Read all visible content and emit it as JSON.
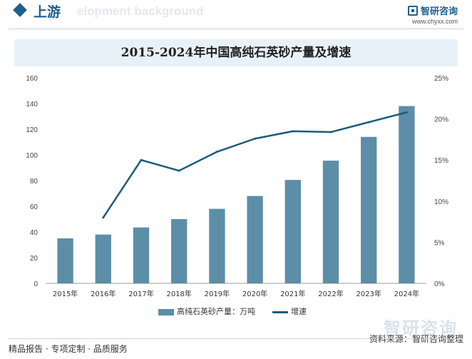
{
  "header": {
    "section_title": "上游",
    "ghost_text": "elopment background",
    "brand_name": "智研咨询",
    "brand_url": "www.chyxx.com"
  },
  "footer": {
    "left_text": "精品报告 · 专项定制 · 品质服务",
    "source_text": "资料来源：智研咨询整理",
    "brand_mark": "智研咨询"
  },
  "colors": {
    "bar": "#5c8ea8",
    "line": "#1b5c7a",
    "accent": "#1f5f8b",
    "title_band": "#e9f1f8"
  },
  "chart_data": {
    "type": "bar",
    "title": "2015-2024年中国高纯石英砂产量及增速",
    "categories": [
      "2015年",
      "2016年",
      "2017年",
      "2018年",
      "2019年",
      "2020年",
      "2021年",
      "2022年",
      "2023年",
      "2024年"
    ],
    "series": [
      {
        "name": "高纯石英砂产量：万吨",
        "type": "bar",
        "axis": "left",
        "values": [
          35,
          38,
          43.5,
          50,
          58,
          68,
          80.5,
          95.5,
          114,
          138
        ]
      },
      {
        "name": "增速",
        "type": "line",
        "axis": "right",
        "values": [
          null,
          8.0,
          15.0,
          13.7,
          16.0,
          17.6,
          18.5,
          18.4,
          19.6,
          20.8
        ]
      }
    ],
    "y_left": {
      "min": 0,
      "max": 160,
      "ticks": [
        0,
        20,
        40,
        60,
        80,
        100,
        120,
        140,
        160
      ]
    },
    "y_right": {
      "min": 0,
      "max": 25,
      "ticks": [
        "0%",
        "5%",
        "10%",
        "15%",
        "20%",
        "25%"
      ]
    },
    "grid": false,
    "legend_position": "bottom"
  }
}
